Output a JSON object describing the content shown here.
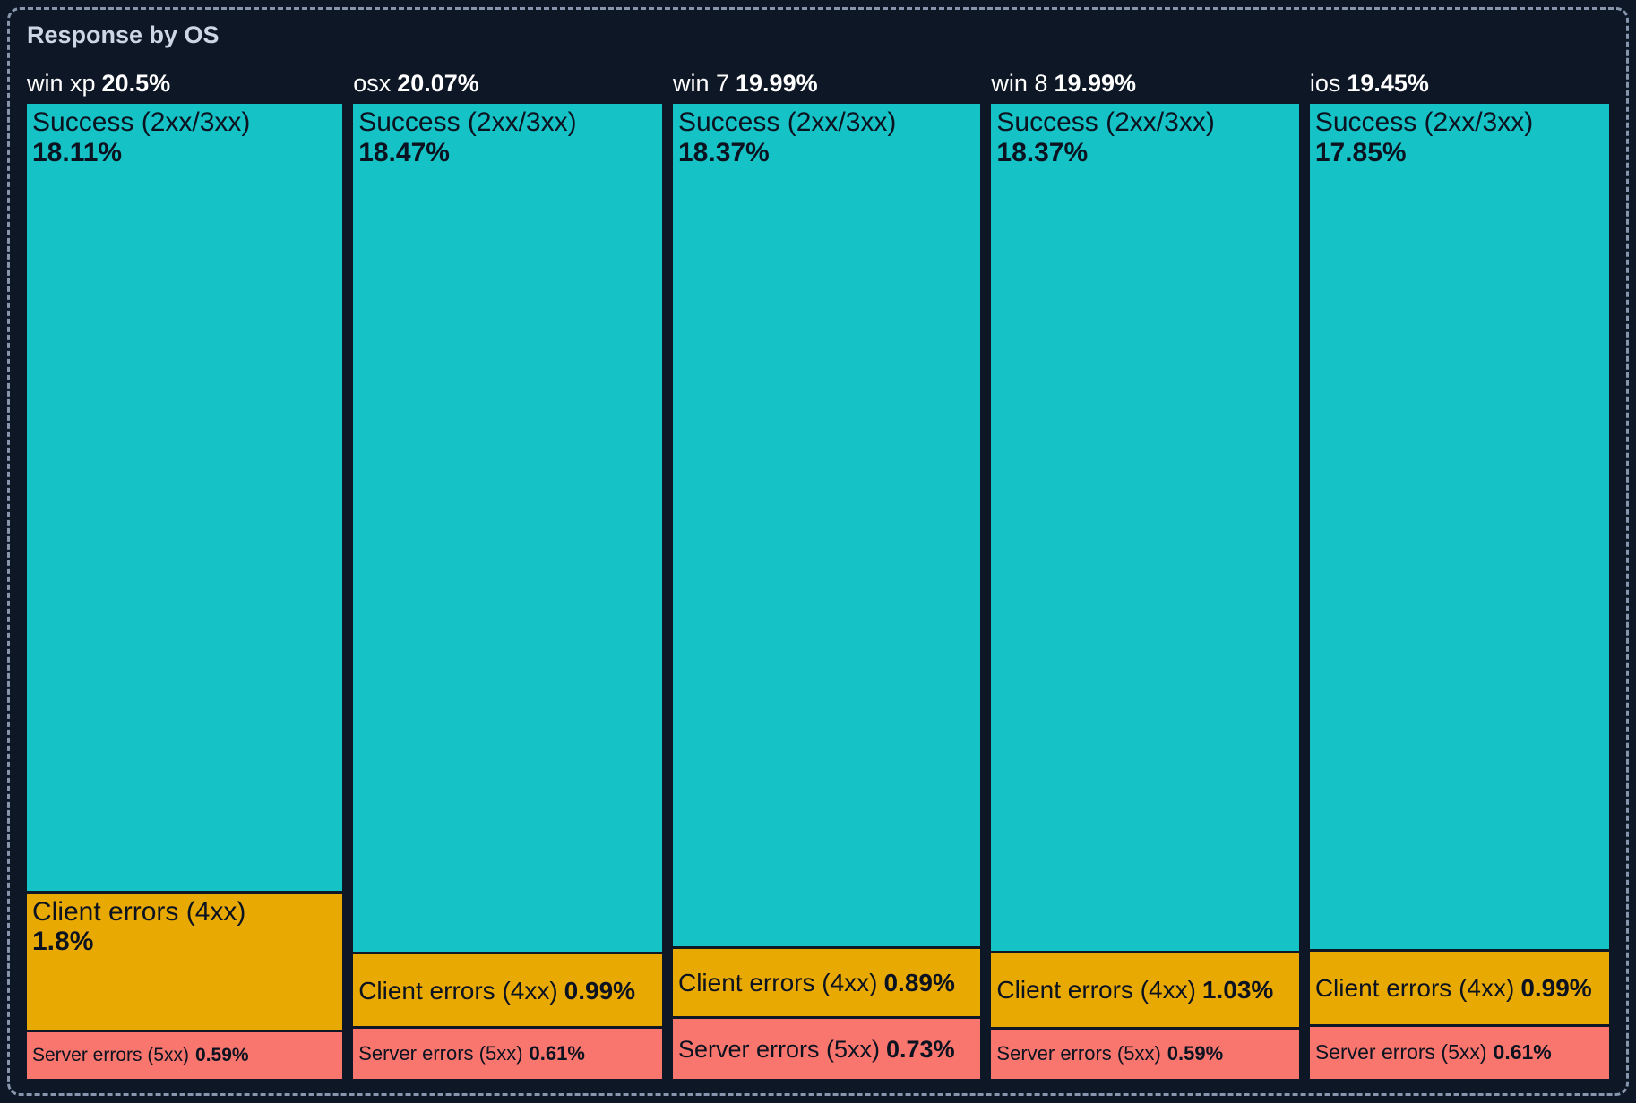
{
  "panel": {
    "title": "Response by OS"
  },
  "theme": {
    "background": "#0e1726",
    "panel_border": "#8796ad",
    "title_color": "#ccd7e6",
    "column_header_color": "#ffffff",
    "segment_label_color": "#0b1220"
  },
  "chart_data": {
    "type": "mosaic",
    "title": "Response by OS",
    "unit": "%",
    "orientation": "columns-by-total-width, segments-by-value-height",
    "colors": {
      "success": "#15c2c5",
      "client": "#e9a903",
      "server": "#f8766d"
    },
    "categories": [
      "Success (2xx/3xx)",
      "Client errors (4xx)",
      "Server errors (5xx)"
    ],
    "columns": [
      {
        "name": "win xp",
        "total": 20.5,
        "total_display": "20.5%",
        "segments": [
          {
            "key": "success",
            "label": "Success (2xx/3xx)",
            "value": 18.11,
            "display": "18.11%"
          },
          {
            "key": "client",
            "label": "Client errors (4xx)",
            "value": 1.8,
            "display": "1.8%"
          },
          {
            "key": "server",
            "label": "Server errors (5xx)",
            "value": 0.59,
            "display": "0.59%"
          }
        ]
      },
      {
        "name": "osx",
        "total": 20.07,
        "total_display": "20.07%",
        "segments": [
          {
            "key": "success",
            "label": "Success (2xx/3xx)",
            "value": 18.47,
            "display": "18.47%"
          },
          {
            "key": "client",
            "label": "Client errors (4xx)",
            "value": 0.99,
            "display": "0.99%"
          },
          {
            "key": "server",
            "label": "Server errors (5xx)",
            "value": 0.61,
            "display": "0.61%"
          }
        ]
      },
      {
        "name": "win 7",
        "total": 19.99,
        "total_display": "19.99%",
        "segments": [
          {
            "key": "success",
            "label": "Success (2xx/3xx)",
            "value": 18.37,
            "display": "18.37%"
          },
          {
            "key": "client",
            "label": "Client errors (4xx)",
            "value": 0.89,
            "display": "0.89%"
          },
          {
            "key": "server",
            "label": "Server errors (5xx)",
            "value": 0.73,
            "display": "0.73%"
          }
        ]
      },
      {
        "name": "win 8",
        "total": 19.99,
        "total_display": "19.99%",
        "segments": [
          {
            "key": "success",
            "label": "Success (2xx/3xx)",
            "value": 18.37,
            "display": "18.37%"
          },
          {
            "key": "client",
            "label": "Client errors (4xx)",
            "value": 1.03,
            "display": "1.03%"
          },
          {
            "key": "server",
            "label": "Server errors (5xx)",
            "value": 0.59,
            "display": "0.59%"
          }
        ]
      },
      {
        "name": "ios",
        "total": 19.45,
        "total_display": "19.45%",
        "segments": [
          {
            "key": "success",
            "label": "Success (2xx/3xx)",
            "value": 17.85,
            "display": "17.85%"
          },
          {
            "key": "client",
            "label": "Client errors (4xx)",
            "value": 0.99,
            "display": "0.99%"
          },
          {
            "key": "server",
            "label": "Server errors (5xx)",
            "value": 0.61,
            "display": "0.61%"
          }
        ]
      }
    ]
  }
}
